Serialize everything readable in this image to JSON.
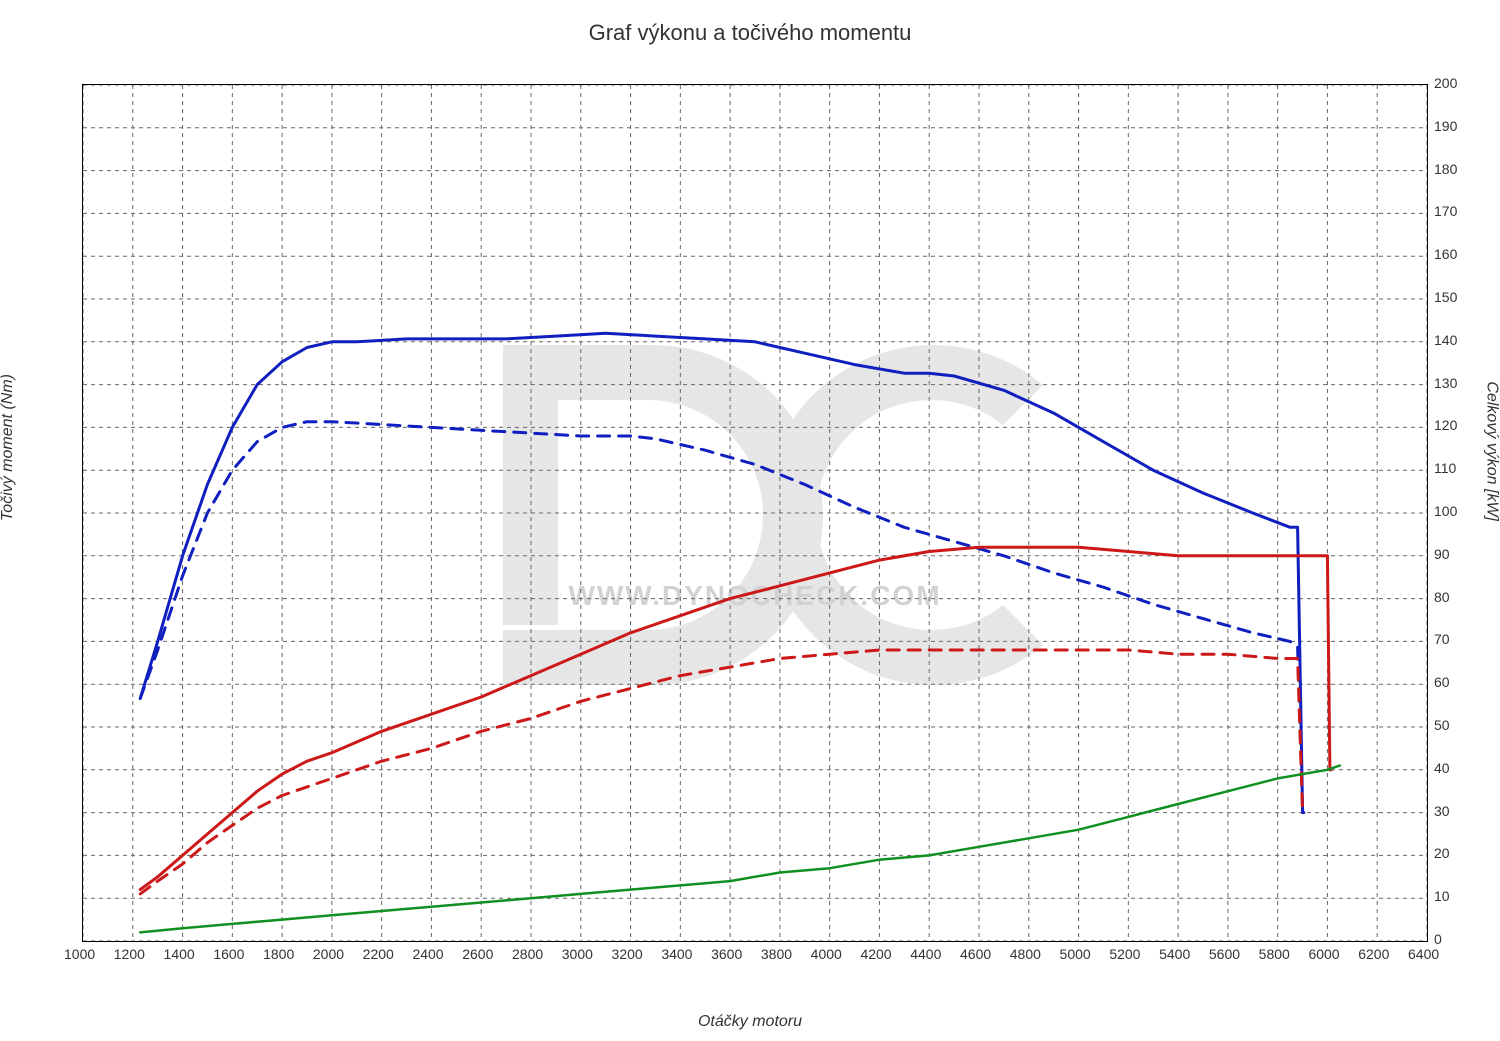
{
  "chart": {
    "type": "line",
    "title": "Graf výkonu a točivého momentu",
    "title_fontsize": 22,
    "background_color": "#ffffff",
    "grid_color": "#666666",
    "grid_dash": "4 4",
    "border_color": "#000000",
    "watermark": {
      "letters": "DC",
      "url_text": "WWW.DYNOCHECK.COM",
      "fill": "#e6e6e6",
      "text_fill": "#d2d2d2"
    },
    "x_axis": {
      "label": "Otáčky motoru",
      "label_fontsize": 16,
      "label_font_style": "italic",
      "min": 1000,
      "max": 6400,
      "tick_step": 200,
      "tick_fontsize": 14
    },
    "y_left_axis": {
      "label": "Točivý moment (Nm)",
      "label_fontsize": 16,
      "label_font_style": "italic",
      "min": 0,
      "max": 300,
      "tick_step": 15,
      "tick_fontsize": 14
    },
    "y_right_axis": {
      "label": "Celkový výkon [kW]",
      "label_fontsize": 16,
      "label_font_style": "italic",
      "min": 0,
      "max": 200,
      "tick_step": 10,
      "tick_fontsize": 14
    },
    "series": [
      {
        "name": "torque_tuned",
        "axis": "left",
        "color": "#1020c0",
        "line_width": 3,
        "dash": "none",
        "points": [
          [
            1230,
            85
          ],
          [
            1300,
            105
          ],
          [
            1400,
            135
          ],
          [
            1500,
            160
          ],
          [
            1600,
            180
          ],
          [
            1700,
            195
          ],
          [
            1800,
            203
          ],
          [
            1900,
            208
          ],
          [
            2000,
            210
          ],
          [
            2100,
            210
          ],
          [
            2300,
            211
          ],
          [
            2500,
            211
          ],
          [
            2700,
            211
          ],
          [
            2900,
            212
          ],
          [
            3100,
            213
          ],
          [
            3300,
            212
          ],
          [
            3500,
            211
          ],
          [
            3700,
            210
          ],
          [
            3900,
            206
          ],
          [
            4100,
            202
          ],
          [
            4300,
            199
          ],
          [
            4400,
            199
          ],
          [
            4500,
            198
          ],
          [
            4700,
            193
          ],
          [
            4900,
            185
          ],
          [
            5100,
            175
          ],
          [
            5300,
            165
          ],
          [
            5500,
            157
          ],
          [
            5700,
            150
          ],
          [
            5850,
            145
          ],
          [
            5880,
            145
          ],
          [
            5900,
            45
          ],
          [
            5905,
            45
          ]
        ]
      },
      {
        "name": "torque_stock",
        "axis": "left",
        "color": "#1020c0",
        "line_width": 3,
        "dash": "12 9",
        "points": [
          [
            1230,
            85
          ],
          [
            1300,
            102
          ],
          [
            1400,
            128
          ],
          [
            1500,
            150
          ],
          [
            1600,
            165
          ],
          [
            1700,
            175
          ],
          [
            1800,
            180
          ],
          [
            1900,
            182
          ],
          [
            2000,
            182
          ],
          [
            2200,
            181
          ],
          [
            2400,
            180
          ],
          [
            2600,
            179
          ],
          [
            2800,
            178
          ],
          [
            3000,
            177
          ],
          [
            3200,
            177
          ],
          [
            3300,
            176
          ],
          [
            3500,
            172
          ],
          [
            3700,
            167
          ],
          [
            3900,
            160
          ],
          [
            4100,
            152
          ],
          [
            4300,
            145
          ],
          [
            4500,
            140
          ],
          [
            4700,
            135
          ],
          [
            4900,
            129
          ],
          [
            5100,
            124
          ],
          [
            5300,
            118
          ],
          [
            5500,
            113
          ],
          [
            5700,
            108
          ],
          [
            5850,
            105
          ],
          [
            5880,
            103
          ],
          [
            5900,
            45
          ],
          [
            5905,
            45
          ]
        ]
      },
      {
        "name": "power_tuned",
        "axis": "right",
        "color": "#cc1818",
        "line_width": 3,
        "dash": "none",
        "points": [
          [
            1230,
            12
          ],
          [
            1300,
            15
          ],
          [
            1400,
            20
          ],
          [
            1500,
            25
          ],
          [
            1600,
            30
          ],
          [
            1700,
            35
          ],
          [
            1800,
            39
          ],
          [
            1900,
            42
          ],
          [
            2000,
            44
          ],
          [
            2200,
            49
          ],
          [
            2400,
            53
          ],
          [
            2600,
            57
          ],
          [
            2800,
            62
          ],
          [
            3000,
            67
          ],
          [
            3200,
            72
          ],
          [
            3400,
            76
          ],
          [
            3600,
            80
          ],
          [
            3800,
            83
          ],
          [
            4000,
            86
          ],
          [
            4200,
            89
          ],
          [
            4400,
            91
          ],
          [
            4600,
            92
          ],
          [
            4800,
            92
          ],
          [
            5000,
            92
          ],
          [
            5200,
            91
          ],
          [
            5400,
            90
          ],
          [
            5600,
            90
          ],
          [
            5800,
            90
          ],
          [
            5950,
            90
          ],
          [
            6000,
            90
          ],
          [
            6010,
            40
          ],
          [
            6015,
            40
          ]
        ]
      },
      {
        "name": "power_stock",
        "axis": "right",
        "color": "#cc1818",
        "line_width": 3,
        "dash": "12 9",
        "points": [
          [
            1230,
            11
          ],
          [
            1300,
            14
          ],
          [
            1400,
            18
          ],
          [
            1500,
            23
          ],
          [
            1600,
            27
          ],
          [
            1700,
            31
          ],
          [
            1800,
            34
          ],
          [
            1900,
            36
          ],
          [
            2000,
            38
          ],
          [
            2200,
            42
          ],
          [
            2400,
            45
          ],
          [
            2600,
            49
          ],
          [
            2800,
            52
          ],
          [
            3000,
            56
          ],
          [
            3200,
            59
          ],
          [
            3400,
            62
          ],
          [
            3600,
            64
          ],
          [
            3800,
            66
          ],
          [
            4000,
            67
          ],
          [
            4200,
            68
          ],
          [
            4400,
            68
          ],
          [
            4600,
            68
          ],
          [
            4800,
            68
          ],
          [
            5000,
            68
          ],
          [
            5200,
            68
          ],
          [
            5400,
            67
          ],
          [
            5600,
            67
          ],
          [
            5800,
            66
          ],
          [
            5850,
            66
          ],
          [
            5880,
            66
          ],
          [
            5900,
            30
          ],
          [
            5905,
            30
          ]
        ]
      },
      {
        "name": "loss_power",
        "axis": "right",
        "color": "#109020",
        "line_width": 2.5,
        "dash": "none",
        "points": [
          [
            1230,
            2
          ],
          [
            1400,
            3
          ],
          [
            1600,
            4
          ],
          [
            1800,
            5
          ],
          [
            2000,
            6
          ],
          [
            2200,
            7
          ],
          [
            2400,
            8
          ],
          [
            2600,
            9
          ],
          [
            2800,
            10
          ],
          [
            3000,
            11
          ],
          [
            3200,
            12
          ],
          [
            3400,
            13
          ],
          [
            3600,
            14
          ],
          [
            3800,
            16
          ],
          [
            4000,
            17
          ],
          [
            4200,
            19
          ],
          [
            4400,
            20
          ],
          [
            4600,
            22
          ],
          [
            4800,
            24
          ],
          [
            5000,
            26
          ],
          [
            5200,
            29
          ],
          [
            5400,
            32
          ],
          [
            5600,
            35
          ],
          [
            5800,
            38
          ],
          [
            6000,
            40
          ],
          [
            6050,
            41
          ]
        ]
      }
    ]
  }
}
